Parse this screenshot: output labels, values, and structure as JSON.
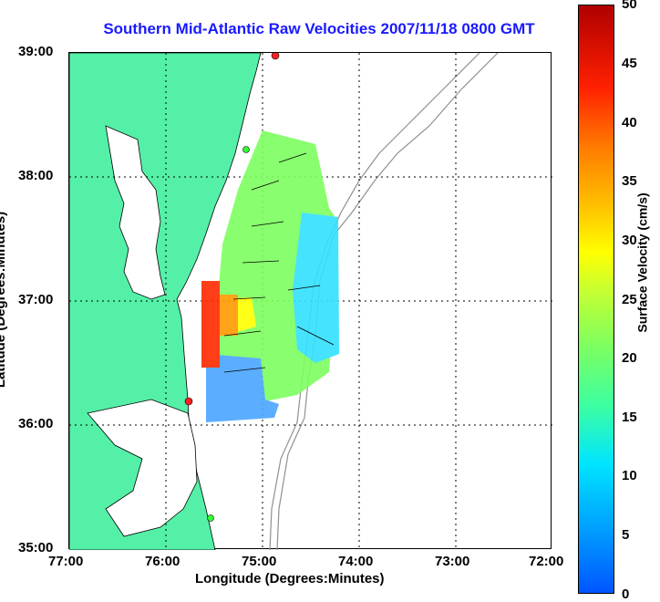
{
  "title": "Southern Mid-Atlantic Raw Velocities 2007/11/18 0800 GMT",
  "xlabel": "Longitude (Degrees:Minutes)",
  "ylabel": "Latitude (Degrees:Minutes)",
  "colorbar_label": "Surface Velocity (cm/s)",
  "x_ticks": [
    "77:00",
    "76:00",
    "75:00",
    "74:00",
    "73:00",
    "72:00"
  ],
  "y_ticks": [
    "39:00",
    "38:00",
    "37:00",
    "36:00",
    "35:00"
  ],
  "colorbar_ticks": [
    "50",
    "45",
    "40",
    "35",
    "30",
    "25",
    "20",
    "15",
    "10",
    "5",
    "0"
  ],
  "colors": {
    "land": "#55f0a8",
    "title": "#1a1aff",
    "coast": "#000000",
    "bathymetry": "#909090"
  },
  "map_extent": {
    "lon": [
      -77,
      -72
    ],
    "lat": [
      35,
      39
    ]
  },
  "colorbar_range": [
    0,
    50
  ]
}
